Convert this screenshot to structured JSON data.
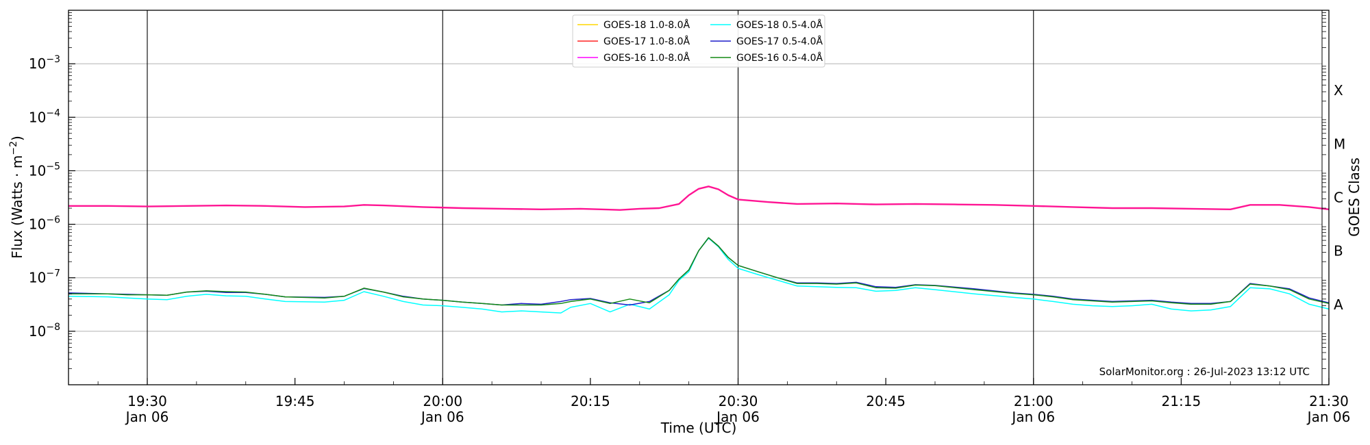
{
  "chart_data": {
    "type": "line",
    "xlabel": "Time (UTC)",
    "ylabel": "Flux (Watts · m",
    "ylabel_sup": "−2",
    "ylabel_close": ")",
    "right_label": "GOES Class",
    "watermark": "SolarMonitor.org : 26-Jul-2023 13:12 UTC",
    "x_range": [
      "19:22",
      "21:30"
    ],
    "ylim": [
      1e-09,
      0.01
    ],
    "yscale": "log",
    "x_ticks": [
      {
        "t": "19:30",
        "label": "19:30",
        "sub": "Jan 06"
      },
      {
        "t": "19:45",
        "label": "19:45",
        "sub": ""
      },
      {
        "t": "20:00",
        "label": "20:00",
        "sub": "Jan 06"
      },
      {
        "t": "20:15",
        "label": "20:15",
        "sub": ""
      },
      {
        "t": "20:30",
        "label": "20:30",
        "sub": "Jan 06"
      },
      {
        "t": "20:45",
        "label": "20:45",
        "sub": ""
      },
      {
        "t": "21:00",
        "label": "21:00",
        "sub": "Jan 06"
      },
      {
        "t": "21:15",
        "label": "21:15",
        "sub": ""
      },
      {
        "t": "21:30",
        "label": "21:30",
        "sub": "Jan 06"
      }
    ],
    "vlines": [
      "19:30",
      "20:00",
      "20:30",
      "21:00"
    ],
    "y_ticks": [
      {
        "exp": -8,
        "label": "10",
        "sup": "−8"
      },
      {
        "exp": -7,
        "label": "10",
        "sup": "−7"
      },
      {
        "exp": -6,
        "label": "10",
        "sup": "−6"
      },
      {
        "exp": -5,
        "label": "10",
        "sup": "−5"
      },
      {
        "exp": -4,
        "label": "10",
        "sup": "−4"
      },
      {
        "exp": -3,
        "label": "10",
        "sup": "−3"
      }
    ],
    "classes": [
      {
        "label": "A",
        "exp": -7.5
      },
      {
        "label": "B",
        "exp": -6.5
      },
      {
        "label": "C",
        "exp": -5.5
      },
      {
        "label": "M",
        "exp": -4.5
      },
      {
        "label": "X",
        "exp": -3.5
      }
    ],
    "grid": true,
    "legend_position": "top-center",
    "series": [
      {
        "name": "GOES-18 1.0-8.0Å",
        "color": "#ffd700",
        "points": []
      },
      {
        "name": "GOES-17 1.0-8.0Å",
        "color": "#ff2020",
        "points": []
      },
      {
        "name": "GOES-16 1.0-8.0Å",
        "color": "#ff00ff",
        "points": []
      },
      {
        "name": "GOES-18 0.5-4.0Å",
        "color": "#00ffff",
        "points": [
          [
            "19:22",
            4.5e-08
          ],
          [
            "19:26",
            4.4e-08
          ],
          [
            "19:28",
            4.2e-08
          ],
          [
            "19:30",
            4e-08
          ],
          [
            "19:32",
            3.9e-08
          ],
          [
            "19:34",
            4.5e-08
          ],
          [
            "19:36",
            4.9e-08
          ],
          [
            "19:38",
            4.6e-08
          ],
          [
            "19:40",
            4.5e-08
          ],
          [
            "19:42",
            4e-08
          ],
          [
            "19:44",
            3.6e-08
          ],
          [
            "19:48",
            3.5e-08
          ],
          [
            "19:50",
            3.8e-08
          ],
          [
            "19:52",
            5.5e-08
          ],
          [
            "19:54",
            4.5e-08
          ],
          [
            "19:56",
            3.6e-08
          ],
          [
            "19:58",
            3.1e-08
          ],
          [
            "20:00",
            3e-08
          ],
          [
            "20:02",
            2.8e-08
          ],
          [
            "20:04",
            2.6e-08
          ],
          [
            "20:06",
            2.3e-08
          ],
          [
            "20:08",
            2.4e-08
          ],
          [
            "20:10",
            2.3e-08
          ],
          [
            "20:12",
            2.2e-08
          ],
          [
            "20:13",
            2.8e-08
          ],
          [
            "20:15",
            3.3e-08
          ],
          [
            "20:17",
            2.3e-08
          ],
          [
            "20:19",
            3.2e-08
          ],
          [
            "20:21",
            2.6e-08
          ],
          [
            "20:23",
            4.8e-08
          ],
          [
            "20:24",
            9e-08
          ],
          [
            "20:25",
            1.3e-07
          ],
          [
            "20:26",
            3.2e-07
          ],
          [
            "20:27",
            5.5e-07
          ],
          [
            "20:28",
            3.8e-07
          ],
          [
            "20:29",
            2.2e-07
          ],
          [
            "20:30",
            1.5e-07
          ],
          [
            "20:32",
            1.15e-07
          ],
          [
            "20:34",
            9e-08
          ],
          [
            "20:36",
            7e-08
          ],
          [
            "20:38",
            6.8e-08
          ],
          [
            "20:40",
            6.6e-08
          ],
          [
            "20:42",
            6.5e-08
          ],
          [
            "20:44",
            5.6e-08
          ],
          [
            "20:46",
            5.8e-08
          ],
          [
            "20:48",
            6.5e-08
          ],
          [
            "20:50",
            6e-08
          ],
          [
            "20:54",
            5e-08
          ],
          [
            "20:58",
            4.3e-08
          ],
          [
            "21:00",
            4e-08
          ],
          [
            "21:02",
            3.6e-08
          ],
          [
            "21:04",
            3.2e-08
          ],
          [
            "21:06",
            3e-08
          ],
          [
            "21:08",
            2.9e-08
          ],
          [
            "21:10",
            3e-08
          ],
          [
            "21:12",
            3.2e-08
          ],
          [
            "21:14",
            2.6e-08
          ],
          [
            "21:16",
            2.4e-08
          ],
          [
            "21:18",
            2.5e-08
          ],
          [
            "21:20",
            2.9e-08
          ],
          [
            "21:22",
            6.5e-08
          ],
          [
            "21:24",
            6.2e-08
          ],
          [
            "21:26",
            5e-08
          ],
          [
            "21:28",
            3.2e-08
          ],
          [
            "21:30",
            2.6e-08
          ]
        ]
      },
      {
        "name": "GOES-17 0.5-4.0Å",
        "color": "#1c1cc8",
        "points": [
          [
            "19:22",
            5.2e-08
          ],
          [
            "19:26",
            5e-08
          ],
          [
            "19:28",
            4.9e-08
          ],
          [
            "19:30",
            4.8e-08
          ],
          [
            "19:32",
            4.7e-08
          ],
          [
            "19:34",
            5.4e-08
          ],
          [
            "19:36",
            5.6e-08
          ],
          [
            "19:38",
            5.3e-08
          ],
          [
            "19:40",
            5.3e-08
          ],
          [
            "19:42",
            4.9e-08
          ],
          [
            "19:44",
            4.4e-08
          ],
          [
            "19:48",
            4.3e-08
          ],
          [
            "19:50",
            4.5e-08
          ],
          [
            "19:52",
            6.3e-08
          ],
          [
            "19:54",
            5.4e-08
          ],
          [
            "19:56",
            4.5e-08
          ],
          [
            "19:58",
            4e-08
          ],
          [
            "20:00",
            3.8e-08
          ],
          [
            "20:02",
            3.5e-08
          ],
          [
            "20:04",
            3.3e-08
          ],
          [
            "20:06",
            3.1e-08
          ],
          [
            "20:08",
            3.3e-08
          ],
          [
            "20:10",
            3.2e-08
          ],
          [
            "20:12",
            3.6e-08
          ],
          [
            "20:13",
            3.9e-08
          ],
          [
            "20:15",
            4.1e-08
          ],
          [
            "20:17",
            3.4e-08
          ],
          [
            "20:19",
            3.1e-08
          ],
          [
            "20:21",
            3.6e-08
          ],
          [
            "20:23",
            5.8e-08
          ],
          [
            "20:24",
            9.5e-08
          ],
          [
            "20:25",
            1.4e-07
          ],
          [
            "20:26",
            3.2e-07
          ],
          [
            "20:27",
            5.6e-07
          ],
          [
            "20:28",
            3.9e-07
          ],
          [
            "20:29",
            2.4e-07
          ],
          [
            "20:30",
            1.7e-07
          ],
          [
            "20:32",
            1.3e-07
          ],
          [
            "20:34",
            1e-07
          ],
          [
            "20:36",
            8e-08
          ],
          [
            "20:38",
            8e-08
          ],
          [
            "20:40",
            7.8e-08
          ],
          [
            "20:42",
            8.2e-08
          ],
          [
            "20:44",
            6.8e-08
          ],
          [
            "20:46",
            6.6e-08
          ],
          [
            "20:48",
            7.4e-08
          ],
          [
            "20:50",
            7.2e-08
          ],
          [
            "20:54",
            6.2e-08
          ],
          [
            "20:58",
            5.2e-08
          ],
          [
            "21:00",
            4.9e-08
          ],
          [
            "21:02",
            4.5e-08
          ],
          [
            "21:04",
            4e-08
          ],
          [
            "21:06",
            3.8e-08
          ],
          [
            "21:08",
            3.6e-08
          ],
          [
            "21:10",
            3.7e-08
          ],
          [
            "21:12",
            3.8e-08
          ],
          [
            "21:14",
            3.5e-08
          ],
          [
            "21:16",
            3.3e-08
          ],
          [
            "21:18",
            3.3e-08
          ],
          [
            "21:20",
            3.6e-08
          ],
          [
            "21:22",
            7.8e-08
          ],
          [
            "21:24",
            7e-08
          ],
          [
            "21:26",
            6.2e-08
          ],
          [
            "21:28",
            4.2e-08
          ],
          [
            "21:30",
            3.4e-08
          ]
        ]
      },
      {
        "name": "GOES-16 0.5-4.0Å",
        "color": "#138a13",
        "points": [
          [
            "19:22",
            5e-08
          ],
          [
            "19:26",
            5e-08
          ],
          [
            "19:28",
            4.8e-08
          ],
          [
            "19:30",
            4.8e-08
          ],
          [
            "19:32",
            4.7e-08
          ],
          [
            "19:34",
            5.4e-08
          ],
          [
            "19:36",
            5.7e-08
          ],
          [
            "19:38",
            5.5e-08
          ],
          [
            "19:40",
            5.4e-08
          ],
          [
            "19:42",
            4.9e-08
          ],
          [
            "19:44",
            4.4e-08
          ],
          [
            "19:48",
            4.2e-08
          ],
          [
            "19:50",
            4.5e-08
          ],
          [
            "19:52",
            6.4e-08
          ],
          [
            "19:54",
            5.4e-08
          ],
          [
            "19:56",
            4.4e-08
          ],
          [
            "19:58",
            4e-08
          ],
          [
            "20:00",
            3.8e-08
          ],
          [
            "20:02",
            3.5e-08
          ],
          [
            "20:04",
            3.3e-08
          ],
          [
            "20:06",
            3.1e-08
          ],
          [
            "20:08",
            3.1e-08
          ],
          [
            "20:10",
            3.1e-08
          ],
          [
            "20:12",
            3.3e-08
          ],
          [
            "20:13",
            3.6e-08
          ],
          [
            "20:15",
            4e-08
          ],
          [
            "20:17",
            3.3e-08
          ],
          [
            "20:19",
            4e-08
          ],
          [
            "20:21",
            3.4e-08
          ],
          [
            "20:23",
            5.8e-08
          ],
          [
            "20:24",
            9.5e-08
          ],
          [
            "20:25",
            1.4e-07
          ],
          [
            "20:26",
            3.2e-07
          ],
          [
            "20:27",
            5.6e-07
          ],
          [
            "20:28",
            3.9e-07
          ],
          [
            "20:29",
            2.4e-07
          ],
          [
            "20:30",
            1.7e-07
          ],
          [
            "20:32",
            1.3e-07
          ],
          [
            "20:34",
            1e-07
          ],
          [
            "20:36",
            7.8e-08
          ],
          [
            "20:38",
            7.8e-08
          ],
          [
            "20:40",
            7.6e-08
          ],
          [
            "20:42",
            8e-08
          ],
          [
            "20:44",
            6.5e-08
          ],
          [
            "20:46",
            6.4e-08
          ],
          [
            "20:48",
            7.3e-08
          ],
          [
            "20:50",
            7.1e-08
          ],
          [
            "20:54",
            6e-08
          ],
          [
            "20:58",
            5.1e-08
          ],
          [
            "21:00",
            4.8e-08
          ],
          [
            "21:02",
            4.4e-08
          ],
          [
            "21:04",
            3.9e-08
          ],
          [
            "21:06",
            3.7e-08
          ],
          [
            "21:08",
            3.5e-08
          ],
          [
            "21:10",
            3.6e-08
          ],
          [
            "21:12",
            3.7e-08
          ],
          [
            "21:14",
            3.4e-08
          ],
          [
            "21:16",
            3.2e-08
          ],
          [
            "21:18",
            3.2e-08
          ],
          [
            "21:20",
            3.6e-08
          ],
          [
            "21:22",
            7.6e-08
          ],
          [
            "21:24",
            7e-08
          ],
          [
            "21:26",
            6e-08
          ],
          [
            "21:28",
            4e-08
          ],
          [
            "21:30",
            3.3e-08
          ]
        ]
      },
      {
        "name": "1.0-8.0Å combined (overlapping)",
        "hidden_legend": true,
        "color": "#ff1493",
        "points": [
          [
            "19:22",
            2.2e-06
          ],
          [
            "19:26",
            2.2e-06
          ],
          [
            "19:30",
            2.15e-06
          ],
          [
            "19:34",
            2.2e-06
          ],
          [
            "19:38",
            2.25e-06
          ],
          [
            "19:42",
            2.2e-06
          ],
          [
            "19:46",
            2.1e-06
          ],
          [
            "19:50",
            2.15e-06
          ],
          [
            "19:52",
            2.3e-06
          ],
          [
            "19:54",
            2.25e-06
          ],
          [
            "19:58",
            2.1e-06
          ],
          [
            "20:02",
            2e-06
          ],
          [
            "20:06",
            1.95e-06
          ],
          [
            "20:10",
            1.9e-06
          ],
          [
            "20:14",
            1.95e-06
          ],
          [
            "20:18",
            1.85e-06
          ],
          [
            "20:20",
            1.95e-06
          ],
          [
            "20:22",
            2e-06
          ],
          [
            "20:24",
            2.4e-06
          ],
          [
            "20:25",
            3.5e-06
          ],
          [
            "20:26",
            4.6e-06
          ],
          [
            "20:27",
            5.1e-06
          ],
          [
            "20:28",
            4.5e-06
          ],
          [
            "20:29",
            3.5e-06
          ],
          [
            "20:30",
            2.9e-06
          ],
          [
            "20:33",
            2.6e-06
          ],
          [
            "20:36",
            2.4e-06
          ],
          [
            "20:40",
            2.45e-06
          ],
          [
            "20:44",
            2.35e-06
          ],
          [
            "20:48",
            2.4e-06
          ],
          [
            "20:52",
            2.35e-06
          ],
          [
            "20:56",
            2.3e-06
          ],
          [
            "21:00",
            2.2e-06
          ],
          [
            "21:04",
            2.1e-06
          ],
          [
            "21:08",
            2e-06
          ],
          [
            "21:12",
            2e-06
          ],
          [
            "21:16",
            1.95e-06
          ],
          [
            "21:20",
            1.9e-06
          ],
          [
            "21:22",
            2.3e-06
          ],
          [
            "21:25",
            2.3e-06
          ],
          [
            "21:28",
            2.1e-06
          ],
          [
            "21:30",
            1.9e-06
          ]
        ]
      }
    ]
  }
}
